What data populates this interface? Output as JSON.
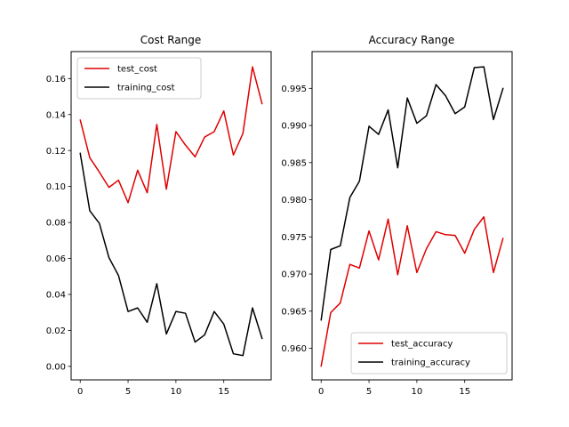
{
  "chart_data": [
    {
      "type": "line",
      "title": "Cost Range",
      "xlabel": "",
      "ylabel": "",
      "x": [
        0,
        1,
        2,
        3,
        4,
        5,
        6,
        7,
        8,
        9,
        10,
        11,
        12,
        13,
        14,
        15,
        16,
        17,
        18,
        19
      ],
      "xlim": [
        -0.95,
        19.95
      ],
      "ylim": [
        -0.0075,
        0.175
      ],
      "xticks": [
        0,
        5,
        10,
        15
      ],
      "xtick_labels": [
        "0",
        "5",
        "10",
        "15"
      ],
      "yticks": [
        0.0,
        0.02,
        0.04,
        0.06,
        0.08,
        0.1,
        0.12,
        0.14,
        0.16
      ],
      "ytick_labels": [
        "0.00",
        "0.02",
        "0.04",
        "0.06",
        "0.08",
        "0.10",
        "0.12",
        "0.14",
        "0.16"
      ],
      "grid": false,
      "legend_position": "top-left",
      "series": [
        {
          "name": "test_cost",
          "color": "#e00000",
          "values": [
            0.137,
            0.116,
            0.108,
            0.0995,
            0.1035,
            0.091,
            0.109,
            0.0965,
            0.1345,
            0.0985,
            0.1305,
            0.123,
            0.1165,
            0.1275,
            0.1305,
            0.142,
            0.1175,
            0.1295,
            0.1665,
            0.146
          ]
        },
        {
          "name": "training_cost",
          "color": "#000000",
          "values": [
            0.1185,
            0.0865,
            0.0795,
            0.0605,
            0.0505,
            0.0305,
            0.0325,
            0.0245,
            0.046,
            0.018,
            0.0305,
            0.0295,
            0.0135,
            0.0175,
            0.0305,
            0.0235,
            0.007,
            0.006,
            0.0325,
            0.0155
          ]
        }
      ]
    },
    {
      "type": "line",
      "title": "Accuracy Range",
      "xlabel": "",
      "ylabel": "",
      "x": [
        0,
        1,
        2,
        3,
        4,
        5,
        6,
        7,
        8,
        9,
        10,
        11,
        12,
        13,
        14,
        15,
        16,
        17,
        18,
        19
      ],
      "xlim": [
        -0.95,
        19.95
      ],
      "ylim": [
        0.95575,
        0.99995
      ],
      "xticks": [
        0,
        5,
        10,
        15
      ],
      "xtick_labels": [
        "0",
        "5",
        "10",
        "15"
      ],
      "yticks": [
        0.96,
        0.965,
        0.97,
        0.975,
        0.98,
        0.985,
        0.99,
        0.995
      ],
      "ytick_labels": [
        "0.960",
        "0.965",
        "0.970",
        "0.975",
        "0.980",
        "0.985",
        "0.990",
        "0.995"
      ],
      "grid": false,
      "legend_position": "bottom-right",
      "series": [
        {
          "name": "test_accuracy",
          "color": "#e00000",
          "values": [
            0.9576,
            0.9648,
            0.9661,
            0.9713,
            0.9708,
            0.9758,
            0.9719,
            0.9774,
            0.9699,
            0.9765,
            0.9702,
            0.9734,
            0.9757,
            0.9753,
            0.9752,
            0.9728,
            0.976,
            0.9777,
            0.9702,
            0.9748
          ]
        },
        {
          "name": "training_accuracy",
          "color": "#000000",
          "values": [
            0.9638,
            0.9733,
            0.9738,
            0.9803,
            0.9825,
            0.9899,
            0.9888,
            0.9921,
            0.9843,
            0.9937,
            0.9903,
            0.9913,
            0.9955,
            0.994,
            0.9916,
            0.9925,
            0.9978,
            0.9979,
            0.9908,
            0.995
          ]
        }
      ]
    }
  ]
}
